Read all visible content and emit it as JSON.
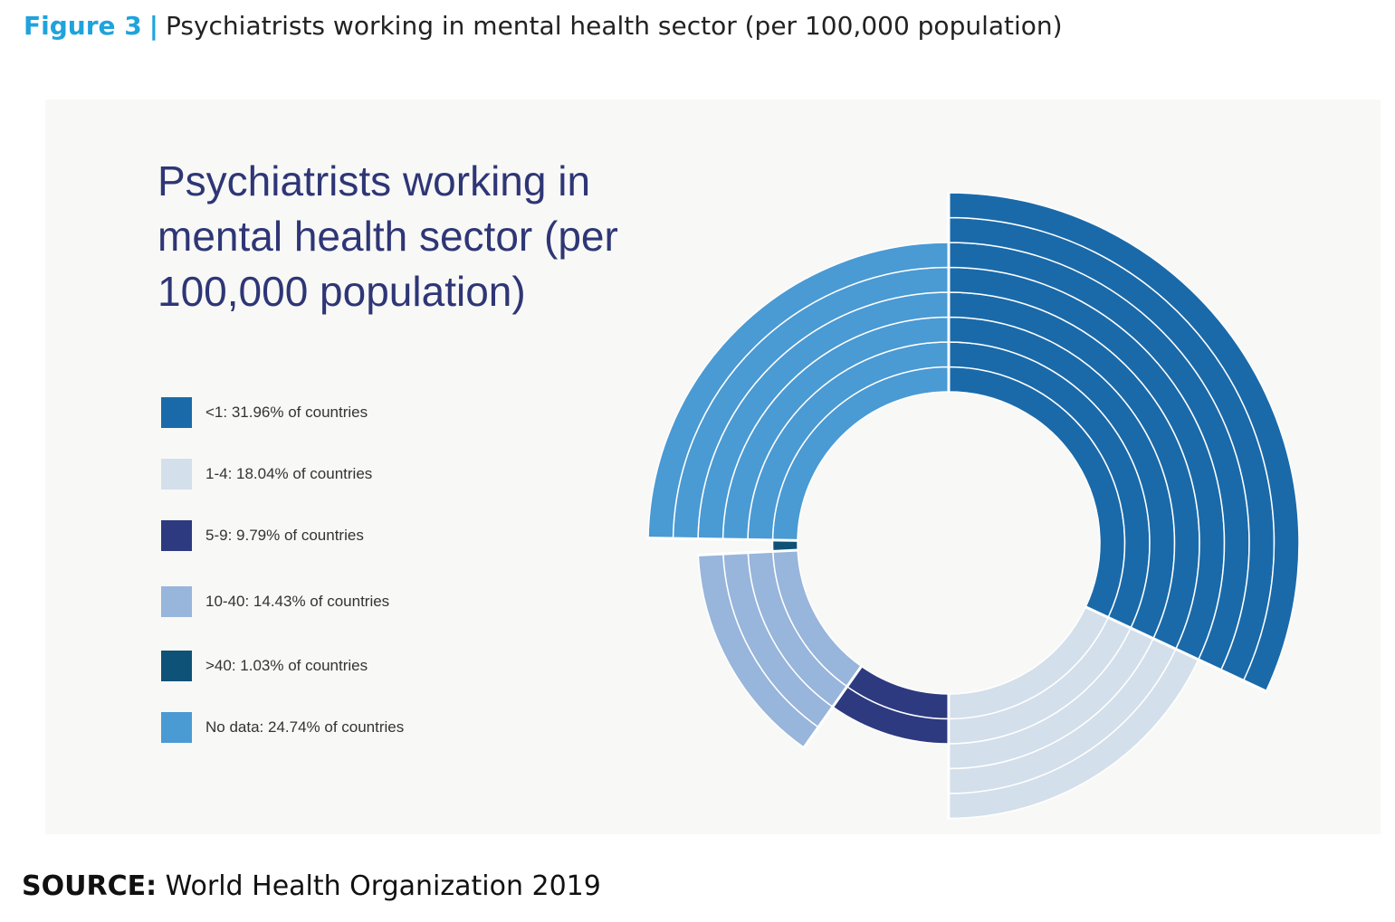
{
  "figure": {
    "label": "Figure 3",
    "separator": "|",
    "title": "Psychiatrists working in mental health sector (per 100,000 population)"
  },
  "source": {
    "label": "SOURCE:",
    "text": "World Health Organization 2019"
  },
  "chart_data": {
    "type": "pie",
    "title": "Psychiatrists working in mental health sector (per 100,000 population)",
    "legend_position": "left",
    "categories": [
      "<1",
      "1-4",
      "5-9",
      "10-40",
      ">40",
      "No data"
    ],
    "values": [
      31.96,
      18.04,
      9.79,
      14.43,
      1.03,
      24.74
    ],
    "unit": "% of countries",
    "legend_labels": [
      "<1: 31.96% of countries",
      "1-4: 18.04% of countries",
      "5-9: 9.79% of countries",
      "10-40: 14.43% of countries",
      ">40: 1.03% of countries",
      "No data: 24.74% of countries"
    ],
    "colors": [
      "#1a6aaa",
      "#d3dfeb",
      "#2d3a80",
      "#98b5db",
      "#0f5277",
      "#4a9ad4"
    ]
  }
}
